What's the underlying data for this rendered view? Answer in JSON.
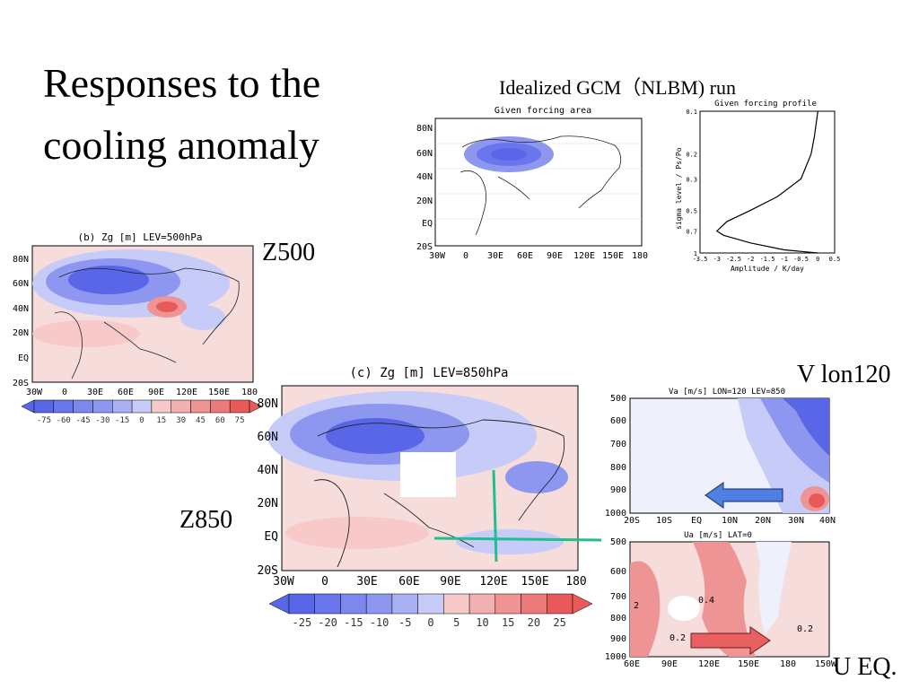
{
  "slide": {
    "title_line1": "Responses to the",
    "title_line2": "cooling anomaly",
    "gcm_caption": "Idealized GCM（NLBM) run"
  },
  "labels": {
    "z500": "Z500",
    "z850": "Z850",
    "v_lon120": "V lon120",
    "u_eq": "U EQ."
  },
  "forcing_area": {
    "title": "Given forcing area",
    "lat_ticks": [
      "80N",
      "60N",
      "40N",
      "20N",
      "EQ",
      "20S"
    ],
    "lon_ticks": [
      "30W",
      "0",
      "30E",
      "60E",
      "90E",
      "120E",
      "150E",
      "180"
    ]
  },
  "forcing_profile": {
    "title": "Given forcing profile",
    "ylabel": "sigma level / Ps/Po",
    "xlabel": "Amplitude / K/day",
    "y_ticks": [
      "0.1",
      "0.2",
      "0.3",
      "0.5",
      "0.7",
      "1"
    ],
    "x_ticks": [
      "-3.5",
      "-3",
      "-2.5",
      "-2",
      "-1.5",
      "-1",
      "-0.5",
      "0",
      "0.5"
    ],
    "profile": [
      [
        0,
        0.1
      ],
      [
        -0.1,
        0.15
      ],
      [
        -0.2,
        0.2
      ],
      [
        -0.5,
        0.3
      ],
      [
        -1.2,
        0.4
      ],
      [
        -2,
        0.5
      ],
      [
        -2.7,
        0.6
      ],
      [
        -3,
        0.7
      ],
      [
        -2.8,
        0.75
      ],
      [
        -2,
        0.85
      ],
      [
        -1,
        0.95
      ],
      [
        0,
        1.0
      ]
    ]
  },
  "panel_b": {
    "title": "(b) Zg [m] LEV=500hPa",
    "lat_ticks": [
      "80N",
      "60N",
      "40N",
      "20N",
      "EQ",
      "20S"
    ],
    "lon_ticks": [
      "30W",
      "0",
      "30E",
      "60E",
      "90E",
      "120E",
      "150E",
      "180"
    ],
    "colorbar_ticks": [
      "-75",
      "-60",
      "-45",
      "-30",
      "-15",
      "0",
      "15",
      "30",
      "45",
      "60",
      "75"
    ]
  },
  "panel_c": {
    "title": "(c) Zg [m] LEV=850hPa",
    "lat_ticks": [
      "80N",
      "60N",
      "40N",
      "20N",
      "EQ",
      "20S"
    ],
    "lon_ticks": [
      "30W",
      "0",
      "30E",
      "60E",
      "90E",
      "120E",
      "150E",
      "180"
    ],
    "colorbar_ticks": [
      "-25",
      "-20",
      "-15",
      "-10",
      "-5",
      "0",
      "5",
      "10",
      "15",
      "20",
      "25"
    ]
  },
  "panel_va": {
    "title": "Va [m/s] LON=120 LEV=850",
    "y_ticks": [
      "500",
      "600",
      "700",
      "800",
      "900",
      "1000"
    ],
    "x_ticks": [
      "20S",
      "10S",
      "EQ",
      "10N",
      "20N",
      "30N",
      "40N"
    ]
  },
  "panel_ua": {
    "title": "Ua [m/s] LAT=0",
    "y_ticks": [
      "500",
      "600",
      "700",
      "800",
      "900",
      "1000"
    ],
    "x_ticks": [
      "60E",
      "90E",
      "120E",
      "150E",
      "180",
      "150W"
    ],
    "contour_labels": [
      "0.4",
      "0.2",
      "0.2",
      "2"
    ]
  },
  "colors": {
    "blue_strong": "#5a66e8",
    "blue_mid": "#8d97f0",
    "blue_light": "#c6ccf7",
    "red_light": "#f7c9c9",
    "red_mid": "#ef9494",
    "red_strong": "#e85a5a",
    "green_line": "#1fbf8f",
    "arrow_blue": "#4f7fe0",
    "arrow_red": "#e86060"
  }
}
